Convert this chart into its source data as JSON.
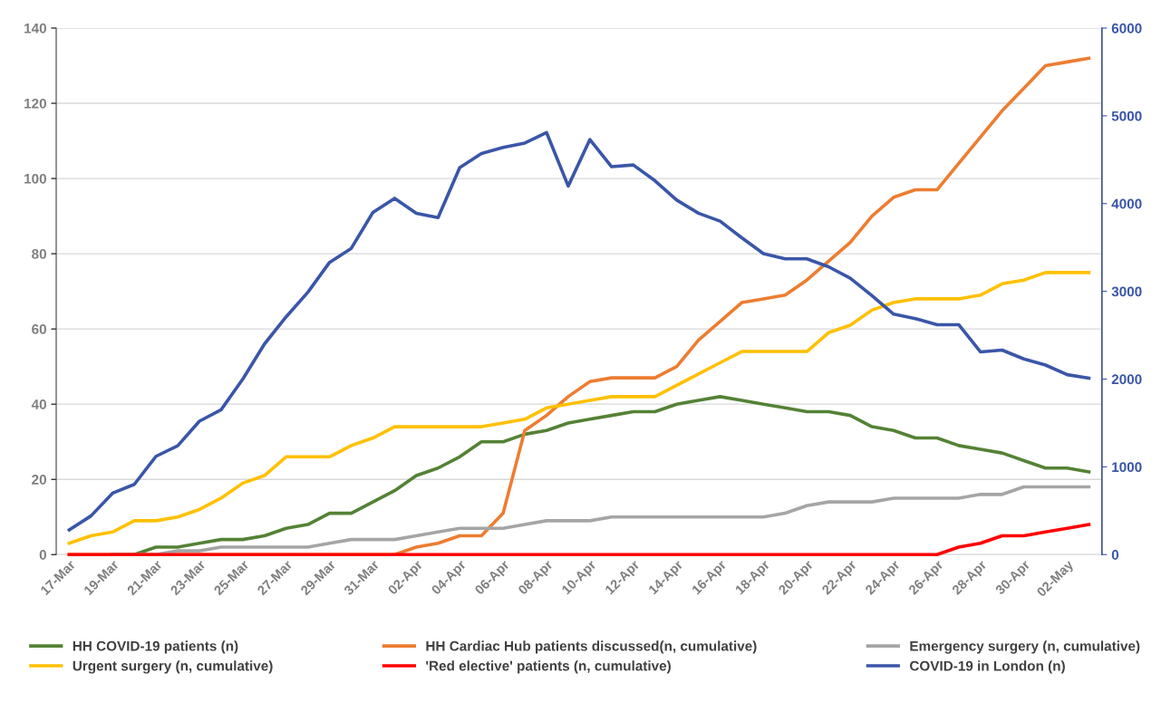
{
  "chart_data": {
    "type": "line",
    "categories": [
      "17-Mar",
      null,
      "19-Mar",
      null,
      "21-Mar",
      null,
      "23-Mar",
      null,
      "25-Mar",
      null,
      "27-Mar",
      null,
      "29-Mar",
      null,
      "31-Mar",
      null,
      "02-Apr",
      null,
      "04-Apr",
      null,
      "06-Apr",
      null,
      "08-Apr",
      null,
      "10-Apr",
      null,
      "12-Apr",
      null,
      "14-Apr",
      null,
      "16-Apr",
      null,
      "18-Apr",
      null,
      "20-Apr",
      null,
      "22-Apr",
      null,
      "24-Apr",
      null,
      "26-Apr",
      null,
      "28-Apr",
      null,
      "30-Apr",
      null,
      "02-May",
      null
    ],
    "series": [
      {
        "name": "HH COVID-19 patients (n)",
        "color": "#548235",
        "values": [
          null,
          null,
          0,
          0,
          2,
          2,
          3,
          4,
          4,
          5,
          7,
          8,
          11,
          11,
          14,
          17,
          21,
          23,
          26,
          30,
          30,
          32,
          33,
          35,
          36,
          37,
          38,
          38,
          40,
          41,
          42,
          41,
          40,
          39,
          38,
          38,
          37,
          34,
          33,
          31,
          31,
          29,
          28,
          27,
          25,
          23,
          23,
          22
        ]
      },
      {
        "name": "HH Cardiac Hub patients discussed(n, cumulative)",
        "color": "#ed7d31",
        "values": [
          0,
          0,
          0,
          0,
          0,
          0,
          0,
          0,
          0,
          0,
          0,
          0,
          0,
          0,
          0,
          0,
          2,
          3,
          5,
          5,
          11,
          33,
          37,
          42,
          46,
          47,
          47,
          47,
          50,
          57,
          62,
          67,
          68,
          69,
          73,
          78,
          83,
          90,
          95,
          97,
          97,
          104,
          111,
          118,
          124,
          130,
          131,
          132
        ]
      },
      {
        "name": "Emergency surgery (n, cumulative)",
        "color": "#a5a5a5",
        "values": [
          null,
          null,
          0,
          0,
          0,
          1,
          1,
          2,
          2,
          2,
          2,
          2,
          3,
          4,
          4,
          4,
          5,
          6,
          7,
          7,
          7,
          8,
          9,
          9,
          9,
          10,
          10,
          10,
          10,
          10,
          10,
          10,
          10,
          11,
          13,
          14,
          14,
          14,
          15,
          15,
          15,
          15,
          16,
          16,
          18,
          18,
          18,
          18
        ]
      },
      {
        "name": "Urgent surgery (n, cumulative)",
        "color": "#ffc000",
        "values": [
          3,
          5,
          6,
          9,
          9,
          10,
          12,
          15,
          19,
          21,
          26,
          26,
          26,
          29,
          31,
          34,
          34,
          34,
          34,
          34,
          35,
          36,
          39,
          40,
          41,
          42,
          42,
          42,
          45,
          48,
          51,
          54,
          54,
          54,
          54,
          59,
          61,
          65,
          67,
          68,
          68,
          68,
          69,
          72,
          73,
          75,
          75,
          75
        ]
      },
      {
        "name": "'Red elective' patients (n, cumulative)",
        "color": "#ff0000",
        "values": [
          0,
          0,
          0,
          0,
          0,
          0,
          0,
          0,
          0,
          0,
          0,
          0,
          0,
          0,
          0,
          0,
          0,
          0,
          0,
          0,
          0,
          0,
          0,
          0,
          0,
          0,
          0,
          0,
          0,
          0,
          0,
          0,
          0,
          0,
          0,
          0,
          0,
          0,
          0,
          0,
          0,
          2,
          3,
          5,
          5,
          6,
          7,
          8
        ]
      },
      {
        "name": "COVID-19 in London (n)",
        "color": "#3a56a8",
        "axis": "y2",
        "values": [
          280,
          440,
          700,
          800,
          1120,
          1240,
          1520,
          1650,
          2000,
          2400,
          2710,
          2990,
          3330,
          3490,
          3900,
          4060,
          3890,
          3840,
          4410,
          4570,
          4640,
          4690,
          4810,
          4200,
          4730,
          4420,
          4440,
          4260,
          4040,
          3890,
          3800,
          3610,
          3430,
          3370,
          3370,
          3280,
          3150,
          2950,
          2740,
          2690,
          2620,
          2620,
          2310,
          2330,
          2230,
          2160,
          2050,
          2010
        ]
      }
    ],
    "ylim": [
      0,
      140
    ],
    "yticks": [
      0,
      20,
      40,
      60,
      80,
      100,
      120,
      140
    ],
    "y2lim": [
      0,
      6000
    ],
    "y2ticks": [
      0,
      1000,
      2000,
      3000,
      4000,
      5000,
      6000
    ],
    "grid": "y",
    "legend": "bottom",
    "marker": "none",
    "line_style": "solid"
  }
}
